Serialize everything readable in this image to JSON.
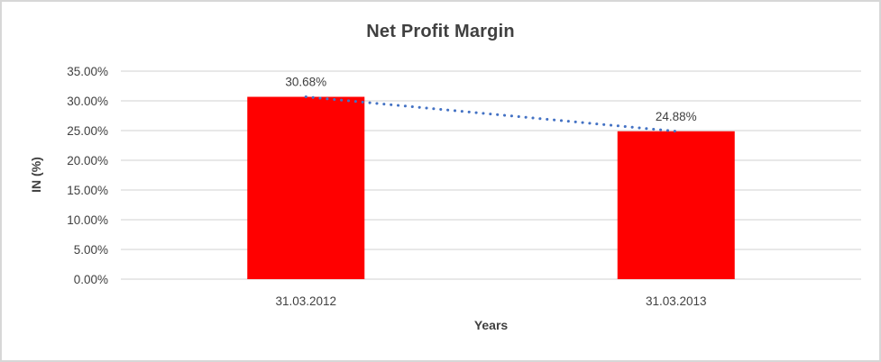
{
  "chart_data": {
    "type": "bar",
    "title": "Net Profit Margin",
    "xlabel": "Years",
    "ylabel": "IN (%)",
    "categories": [
      "31.03.2012",
      "31.03.2013"
    ],
    "series": [
      {
        "name": "Net Profit Margin",
        "values": [
          30.68,
          24.88
        ]
      }
    ],
    "data_labels": [
      "30.68%",
      "24.88%"
    ],
    "ylim": [
      0,
      35
    ],
    "ytick_step": 5,
    "ytick_labels": [
      "0.00%",
      "5.00%",
      "10.00%",
      "15.00%",
      "20.00%",
      "25.00%",
      "30.00%",
      "35.00%"
    ],
    "grid": true,
    "legend": "none",
    "colors": {
      "bar": "#ff0000",
      "trendline": "#4472c4",
      "gridline": "#d9d9d9",
      "axis_line": "#d9d9d9",
      "text": "#404040",
      "frame_border": "#d7d7d7"
    },
    "trendline": {
      "type": "linear",
      "style": "dotted",
      "between": [
        30.68,
        24.88
      ]
    }
  }
}
